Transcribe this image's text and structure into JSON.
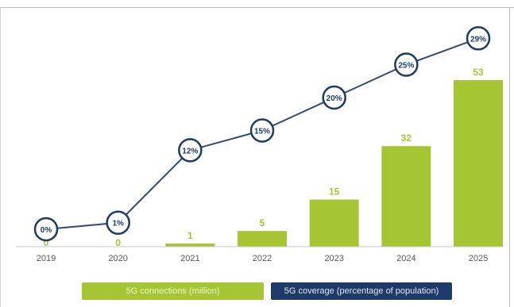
{
  "chart_data": {
    "type": "bar+line",
    "title": "",
    "xlabel": "",
    "ylabel": "",
    "categories": [
      "2019",
      "2020",
      "2021",
      "2022",
      "2023",
      "2024",
      "2025"
    ],
    "series": [
      {
        "name": "5G connections (million)",
        "type": "bar",
        "values": [
          0,
          0,
          1,
          5,
          15,
          32,
          53
        ],
        "labels": [
          "0",
          "0",
          "1",
          "5",
          "15",
          "32",
          "53"
        ],
        "color": "#a5c532"
      },
      {
        "name": "5G coverage (percentage of population)",
        "type": "line",
        "values": [
          0,
          1,
          12,
          15,
          20,
          25,
          29
        ],
        "labels": [
          "0%",
          "1%",
          "12%",
          "15%",
          "20%",
          "25%",
          "29%"
        ],
        "color": "#1e3a68"
      }
    ],
    "bar_ylim": [
      0,
      60
    ],
    "line_ylim": [
      0,
      30
    ],
    "grid": false,
    "legend_position": "bottom"
  }
}
